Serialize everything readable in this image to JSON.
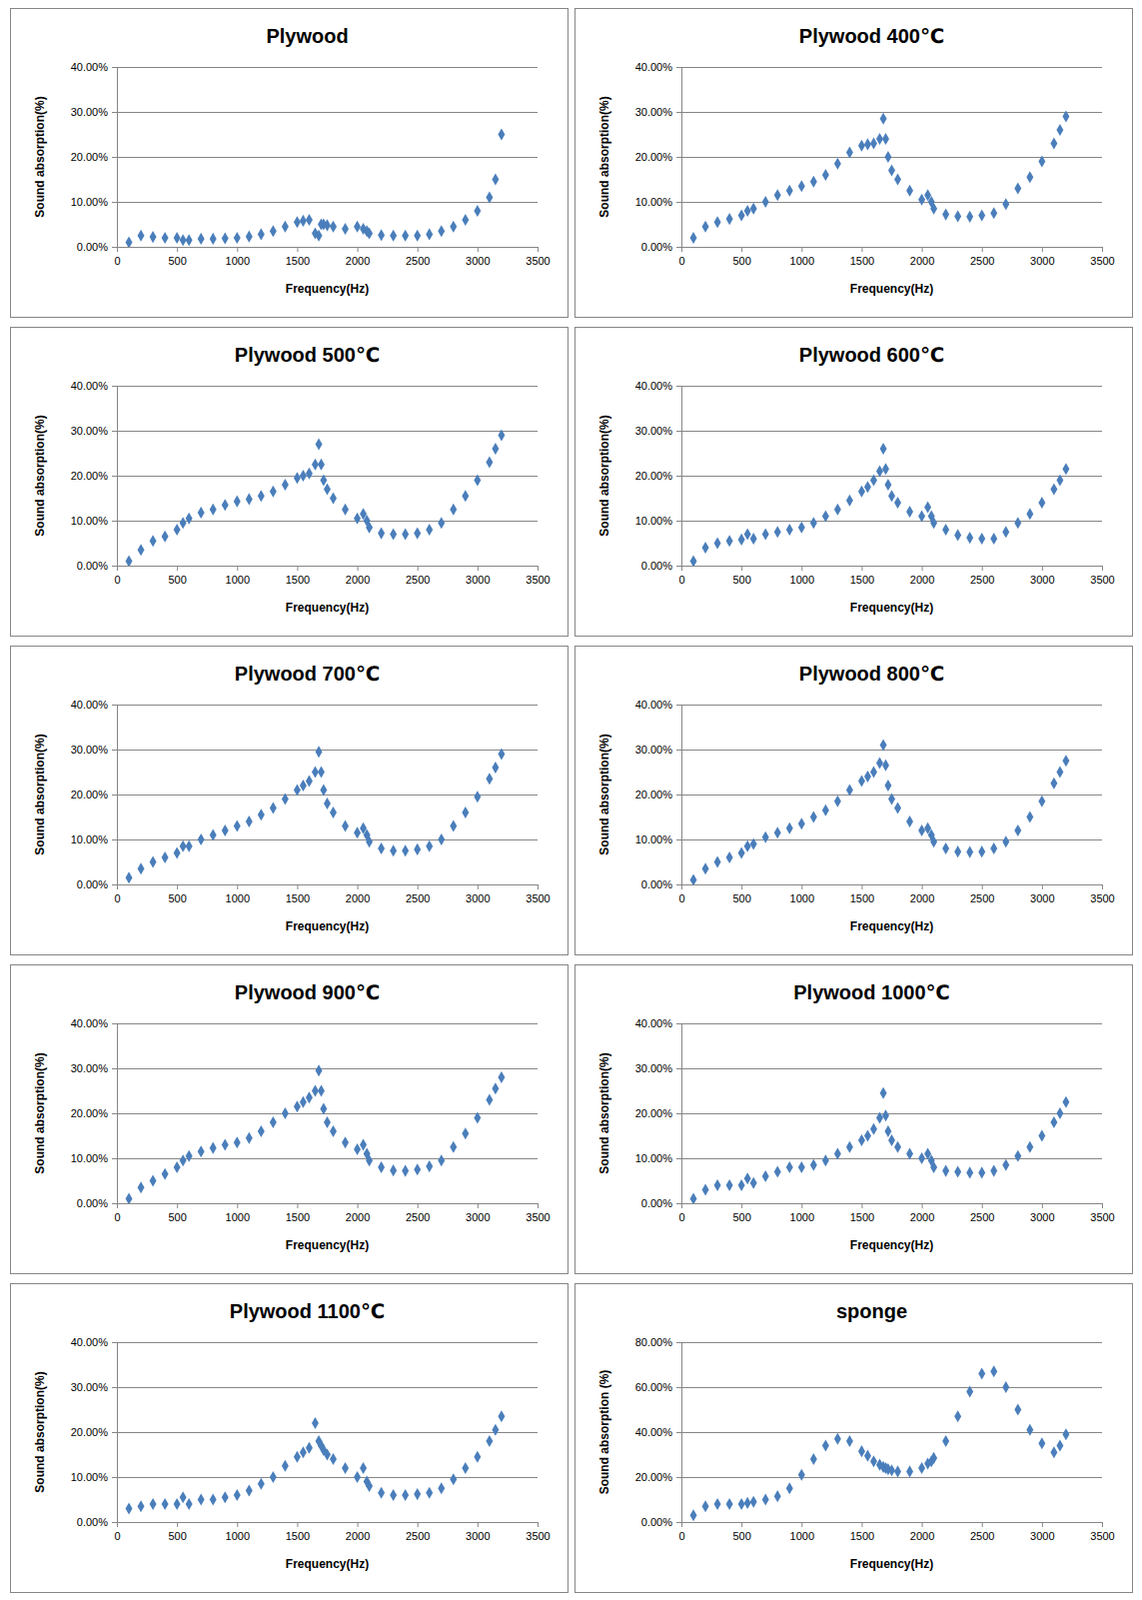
{
  "chart_data": [
    {
      "type": "scatter",
      "title": "Plywood",
      "x_label": "Frequency(Hz)",
      "y_label": "Sound absorption(%)",
      "color": "#4a7ebb",
      "marker": "diamond",
      "grid": true,
      "xlim": [
        0,
        3500
      ],
      "xticks": [
        0,
        500,
        1000,
        1500,
        2000,
        2500,
        3000,
        3500
      ],
      "ylim": [
        0,
        40
      ],
      "yticks": [
        {
          "value": 0,
          "label": "0.00%"
        },
        {
          "value": 10,
          "label": "10.00%"
        },
        {
          "value": 20,
          "label": "20.00%"
        },
        {
          "value": 30,
          "label": "30.00%"
        },
        {
          "value": 40,
          "label": "40.00%"
        }
      ],
      "x": [
        100,
        200,
        300,
        400,
        500,
        550,
        600,
        700,
        800,
        900,
        1000,
        1100,
        1200,
        1300,
        1400,
        1500,
        1550,
        1600,
        1650,
        1680,
        1700,
        1720,
        1750,
        1800,
        1900,
        2000,
        2050,
        2080,
        2100,
        2200,
        2300,
        2400,
        2500,
        2600,
        2700,
        2800,
        2900,
        3000,
        3100,
        3150,
        3200
      ],
      "values": [
        1,
        2.5,
        2.2,
        2,
        2,
        1.5,
        1.5,
        1.8,
        1.8,
        1.9,
        2,
        2.3,
        2.8,
        3.5,
        4.5,
        5.5,
        5.8,
        6,
        3,
        2.5,
        5,
        5,
        4.8,
        4.5,
        4,
        4.5,
        4,
        3.5,
        3,
        2.6,
        2.5,
        2.5,
        2.5,
        2.8,
        3.5,
        4.5,
        6,
        8,
        11,
        15,
        25
      ]
    },
    {
      "type": "scatter",
      "title": "Plywood 400℃",
      "x_label": "Frequency(Hz)",
      "y_label": "Sound absorption(%)",
      "color": "#4a7ebb",
      "marker": "diamond",
      "grid": true,
      "xlim": [
        0,
        3500
      ],
      "xticks": [
        0,
        500,
        1000,
        1500,
        2000,
        2500,
        3000,
        3500
      ],
      "ylim": [
        0,
        40
      ],
      "yticks": [
        {
          "value": 0,
          "label": "0.00%"
        },
        {
          "value": 10,
          "label": "10.00%"
        },
        {
          "value": 20,
          "label": "20.00%"
        },
        {
          "value": 30,
          "label": "30.00%"
        },
        {
          "value": 40,
          "label": "40.00%"
        }
      ],
      "x": [
        100,
        200,
        300,
        400,
        500,
        550,
        600,
        700,
        800,
        900,
        1000,
        1100,
        1200,
        1300,
        1400,
        1500,
        1550,
        1600,
        1650,
        1680,
        1700,
        1720,
        1750,
        1800,
        1900,
        2000,
        2050,
        2080,
        2100,
        2200,
        2300,
        2400,
        2500,
        2600,
        2700,
        2800,
        2900,
        3000,
        3100,
        3150,
        3200
      ],
      "values": [
        2,
        4.5,
        5.5,
        6.2,
        7,
        8,
        8.5,
        10,
        11.5,
        12.5,
        13.5,
        14.5,
        16,
        18.5,
        21,
        22.5,
        22.8,
        23,
        24,
        28.5,
        24,
        20,
        17,
        15,
        12.5,
        10.5,
        11.5,
        10,
        8.5,
        7.2,
        6.8,
        6.7,
        7,
        7.5,
        9.5,
        13,
        15.5,
        19,
        23,
        26,
        29
      ]
    },
    {
      "type": "scatter",
      "title": "Plywood 500℃",
      "x_label": "Frequency(Hz)",
      "y_label": "Sound absorption(%)",
      "color": "#4a7ebb",
      "marker": "diamond",
      "grid": true,
      "xlim": [
        0,
        3500
      ],
      "xticks": [
        0,
        500,
        1000,
        1500,
        2000,
        2500,
        3000,
        3500
      ],
      "ylim": [
        0,
        40
      ],
      "yticks": [
        {
          "value": 0,
          "label": "0.00%"
        },
        {
          "value": 10,
          "label": "10.00%"
        },
        {
          "value": 20,
          "label": "20.00%"
        },
        {
          "value": 30,
          "label": "30.00%"
        },
        {
          "value": 40,
          "label": "40.00%"
        }
      ],
      "x": [
        100,
        200,
        300,
        400,
        500,
        550,
        600,
        700,
        800,
        900,
        1000,
        1100,
        1200,
        1300,
        1400,
        1500,
        1550,
        1600,
        1650,
        1680,
        1700,
        1720,
        1750,
        1800,
        1900,
        2000,
        2050,
        2080,
        2100,
        2200,
        2300,
        2400,
        2500,
        2600,
        2700,
        2800,
        2900,
        3000,
        3100,
        3150,
        3200
      ],
      "values": [
        1,
        3.5,
        5.5,
        6.5,
        8,
        9.5,
        10.5,
        11.8,
        12.5,
        13.5,
        14.3,
        14.8,
        15.5,
        16.5,
        18,
        19.5,
        20,
        20.5,
        22.5,
        27,
        22.5,
        19,
        17,
        15,
        12.5,
        10.5,
        11.5,
        10,
        8.5,
        7.2,
        7,
        7,
        7.2,
        8,
        9.5,
        12.5,
        15.5,
        19,
        23,
        26,
        29
      ]
    },
    {
      "type": "scatter",
      "title": "Plywood 600℃",
      "x_label": "Frequency(Hz)",
      "y_label": "Sound absorption(%)",
      "color": "#4a7ebb",
      "marker": "diamond",
      "grid": true,
      "xlim": [
        0,
        3500
      ],
      "xticks": [
        0,
        500,
        1000,
        1500,
        2000,
        2500,
        3000,
        3500
      ],
      "ylim": [
        0,
        40
      ],
      "yticks": [
        {
          "value": 0,
          "label": "0.00%"
        },
        {
          "value": 10,
          "label": "10.00%"
        },
        {
          "value": 20,
          "label": "20.00%"
        },
        {
          "value": 30,
          "label": "30.00%"
        },
        {
          "value": 40,
          "label": "40.00%"
        }
      ],
      "x": [
        100,
        200,
        300,
        400,
        500,
        550,
        600,
        700,
        800,
        900,
        1000,
        1100,
        1200,
        1300,
        1400,
        1500,
        1550,
        1600,
        1650,
        1680,
        1700,
        1720,
        1750,
        1800,
        1900,
        2000,
        2050,
        2080,
        2100,
        2200,
        2300,
        2400,
        2500,
        2600,
        2700,
        2800,
        2900,
        3000,
        3100,
        3150,
        3200
      ],
      "values": [
        1,
        4,
        5,
        5.5,
        5.8,
        7,
        6,
        7,
        7.5,
        8,
        8.5,
        9.5,
        11,
        12.5,
        14.5,
        16.5,
        17.5,
        19,
        21,
        26,
        21.5,
        18,
        15.5,
        14,
        12,
        11,
        13,
        11,
        9.5,
        8,
        6.8,
        6.2,
        6,
        6,
        7.5,
        9.5,
        11.5,
        14,
        17,
        19,
        21.5
      ]
    },
    {
      "type": "scatter",
      "title": "Plywood 700℃",
      "x_label": "Frequency(Hz)",
      "y_label": "Sound absorption(%)",
      "color": "#4a7ebb",
      "marker": "diamond",
      "grid": true,
      "xlim": [
        0,
        3500
      ],
      "xticks": [
        0,
        500,
        1000,
        1500,
        2000,
        2500,
        3000,
        3500
      ],
      "ylim": [
        0,
        40
      ],
      "yticks": [
        {
          "value": 0,
          "label": "0.00%"
        },
        {
          "value": 10,
          "label": "10.00%"
        },
        {
          "value": 20,
          "label": "20.00%"
        },
        {
          "value": 30,
          "label": "30.00%"
        },
        {
          "value": 40,
          "label": "40.00%"
        }
      ],
      "x": [
        100,
        200,
        300,
        400,
        500,
        550,
        600,
        700,
        800,
        900,
        1000,
        1100,
        1200,
        1300,
        1400,
        1500,
        1550,
        1600,
        1650,
        1680,
        1700,
        1720,
        1750,
        1800,
        1900,
        2000,
        2050,
        2080,
        2100,
        2200,
        2300,
        2400,
        2500,
        2600,
        2700,
        2800,
        2900,
        3000,
        3100,
        3150,
        3200
      ],
      "values": [
        1.5,
        3.5,
        5,
        6,
        7,
        8.5,
        8.5,
        10,
        11,
        12,
        13,
        14,
        15.5,
        17,
        19,
        21,
        22,
        23,
        25,
        29.5,
        25,
        21,
        18,
        16,
        13,
        11.5,
        12.5,
        11,
        9.5,
        8,
        7.5,
        7.5,
        7.8,
        8.5,
        10,
        13,
        16,
        19.5,
        23.5,
        26,
        29
      ]
    },
    {
      "type": "scatter",
      "title": "Plywood 800℃",
      "x_label": "Frequency(Hz)",
      "y_label": "Sound absorption(%)",
      "color": "#4a7ebb",
      "marker": "diamond",
      "grid": true,
      "xlim": [
        0,
        3500
      ],
      "xticks": [
        0,
        500,
        1000,
        1500,
        2000,
        2500,
        3000,
        3500
      ],
      "ylim": [
        0,
        40
      ],
      "yticks": [
        {
          "value": 0,
          "label": "0.00%"
        },
        {
          "value": 10,
          "label": "10.00%"
        },
        {
          "value": 20,
          "label": "20.00%"
        },
        {
          "value": 30,
          "label": "30.00%"
        },
        {
          "value": 40,
          "label": "40.00%"
        }
      ],
      "x": [
        100,
        200,
        300,
        400,
        500,
        550,
        600,
        700,
        800,
        900,
        1000,
        1100,
        1200,
        1300,
        1400,
        1500,
        1550,
        1600,
        1650,
        1680,
        1700,
        1720,
        1750,
        1800,
        1900,
        2000,
        2050,
        2080,
        2100,
        2200,
        2300,
        2400,
        2500,
        2600,
        2700,
        2800,
        2900,
        3000,
        3100,
        3150,
        3200
      ],
      "values": [
        1,
        3.5,
        5,
        6,
        7,
        8.5,
        9,
        10.5,
        11.5,
        12.5,
        13.5,
        15,
        16.5,
        18.5,
        21,
        23,
        24,
        25,
        27,
        31,
        26.5,
        22,
        19,
        17,
        14,
        12,
        12.5,
        11,
        9.5,
        8,
        7.3,
        7.2,
        7.3,
        8,
        9.5,
        12,
        15,
        18.5,
        22.5,
        25,
        27.5
      ]
    },
    {
      "type": "scatter",
      "title": "Plywood 900℃",
      "x_label": "Frequency(Hz)",
      "y_label": "Sound absorption(%)",
      "color": "#4a7ebb",
      "marker": "diamond",
      "grid": true,
      "xlim": [
        0,
        3500
      ],
      "xticks": [
        0,
        500,
        1000,
        1500,
        2000,
        2500,
        3000,
        3500
      ],
      "ylim": [
        0,
        40
      ],
      "yticks": [
        {
          "value": 0,
          "label": "0.00%"
        },
        {
          "value": 10,
          "label": "10.00%"
        },
        {
          "value": 20,
          "label": "20.00%"
        },
        {
          "value": 30,
          "label": "30.00%"
        },
        {
          "value": 40,
          "label": "40.00%"
        }
      ],
      "x": [
        100,
        200,
        300,
        400,
        500,
        550,
        600,
        700,
        800,
        900,
        1000,
        1100,
        1200,
        1300,
        1400,
        1500,
        1550,
        1600,
        1650,
        1680,
        1700,
        1720,
        1750,
        1800,
        1900,
        2000,
        2050,
        2080,
        2100,
        2200,
        2300,
        2400,
        2500,
        2600,
        2700,
        2800,
        2900,
        3000,
        3100,
        3150,
        3200
      ],
      "values": [
        1,
        3.5,
        5,
        6.5,
        8,
        9.5,
        10.5,
        11.5,
        12.3,
        13,
        13.5,
        14.5,
        16,
        18,
        20,
        21.5,
        22.5,
        23.5,
        25,
        29.5,
        25,
        21,
        18,
        16,
        13.5,
        12,
        13,
        11,
        9.5,
        8,
        7.3,
        7.2,
        7.5,
        8.2,
        9.5,
        12.5,
        15.5,
        19,
        23,
        25.5,
        28
      ]
    },
    {
      "type": "scatter",
      "title": "Plywood 1000℃",
      "x_label": "Frequency(Hz)",
      "y_label": "Sound absorption(%)",
      "color": "#4a7ebb",
      "marker": "diamond",
      "grid": true,
      "xlim": [
        0,
        3500
      ],
      "xticks": [
        0,
        500,
        1000,
        1500,
        2000,
        2500,
        3000,
        3500
      ],
      "ylim": [
        0,
        40
      ],
      "yticks": [
        {
          "value": 0,
          "label": "0.00%"
        },
        {
          "value": 10,
          "label": "10.00%"
        },
        {
          "value": 20,
          "label": "20.00%"
        },
        {
          "value": 30,
          "label": "30.00%"
        },
        {
          "value": 40,
          "label": "40.00%"
        }
      ],
      "x": [
        100,
        200,
        300,
        400,
        500,
        550,
        600,
        700,
        800,
        900,
        1000,
        1100,
        1200,
        1300,
        1400,
        1500,
        1550,
        1600,
        1650,
        1680,
        1700,
        1720,
        1750,
        1800,
        1900,
        2000,
        2050,
        2080,
        2100,
        2200,
        2300,
        2400,
        2500,
        2600,
        2700,
        2800,
        2900,
        3000,
        3100,
        3150,
        3200
      ],
      "values": [
        1,
        3,
        4,
        4,
        4,
        5.5,
        4.5,
        6,
        7,
        8,
        8,
        8.5,
        9.5,
        11,
        12.5,
        14,
        15,
        16.5,
        19,
        24.5,
        19.5,
        16,
        14,
        12.5,
        11,
        10,
        11,
        9.5,
        8,
        7.2,
        7,
        6.8,
        6.8,
        7.2,
        8.5,
        10.5,
        12.5,
        15,
        18,
        20,
        22.5
      ]
    },
    {
      "type": "scatter",
      "title": "Plywood 1100℃",
      "x_label": "Frequency(Hz)",
      "y_label": "Sound absorption(%)",
      "color": "#4a7ebb",
      "marker": "diamond",
      "grid": true,
      "xlim": [
        0,
        3500
      ],
      "xticks": [
        0,
        500,
        1000,
        1500,
        2000,
        2500,
        3000,
        3500
      ],
      "ylim": [
        0,
        40
      ],
      "yticks": [
        {
          "value": 0,
          "label": "0.00%"
        },
        {
          "value": 10,
          "label": "10.00%"
        },
        {
          "value": 20,
          "label": "20.00%"
        },
        {
          "value": 30,
          "label": "30.00%"
        },
        {
          "value": 40,
          "label": "40.00%"
        }
      ],
      "x": [
        100,
        200,
        300,
        400,
        500,
        550,
        600,
        700,
        800,
        900,
        1000,
        1100,
        1200,
        1300,
        1400,
        1500,
        1550,
        1600,
        1650,
        1680,
        1700,
        1720,
        1750,
        1800,
        1900,
        2000,
        2050,
        2080,
        2100,
        2200,
        2300,
        2400,
        2500,
        2600,
        2700,
        2800,
        2900,
        3000,
        3100,
        3150,
        3200
      ],
      "values": [
        3,
        3.5,
        4,
        4,
        4,
        5.5,
        4,
        5,
        5,
        5.5,
        6,
        7,
        8.5,
        10,
        12.5,
        14.5,
        15.5,
        16.5,
        22,
        18,
        17,
        16,
        15,
        14,
        12,
        10,
        12,
        9,
        8,
        6.5,
        6,
        6,
        6.2,
        6.5,
        7.5,
        9.5,
        12,
        14.5,
        18,
        20.5,
        23.5
      ]
    },
    {
      "type": "scatter",
      "title": "sponge",
      "x_label": "Frequency(Hz)",
      "y_label": "Sound absorption (%)",
      "color": "#4a7ebb",
      "marker": "diamond",
      "grid": true,
      "xlim": [
        0,
        3500
      ],
      "xticks": [
        0,
        500,
        1000,
        1500,
        2000,
        2500,
        3000,
        3500
      ],
      "ylim": [
        0,
        80
      ],
      "yticks": [
        {
          "value": 0,
          "label": "0.00%"
        },
        {
          "value": 20,
          "label": "20.00%"
        },
        {
          "value": 40,
          "label": "40.00%"
        },
        {
          "value": 60,
          "label": "60.00%"
        },
        {
          "value": 80,
          "label": "80.00%"
        }
      ],
      "x": [
        100,
        200,
        300,
        400,
        500,
        550,
        600,
        700,
        800,
        900,
        1000,
        1100,
        1200,
        1300,
        1400,
        1500,
        1550,
        1600,
        1650,
        1680,
        1700,
        1720,
        1750,
        1800,
        1900,
        2000,
        2050,
        2080,
        2100,
        2200,
        2300,
        2400,
        2500,
        2600,
        2700,
        2800,
        2900,
        3000,
        3100,
        3150,
        3200
      ],
      "values": [
        3,
        7,
        8,
        8,
        8,
        8.5,
        9,
        10,
        11.5,
        15,
        21,
        28,
        34,
        37,
        36,
        31.5,
        29.5,
        27,
        25.5,
        24.5,
        24,
        23.5,
        23,
        22.5,
        22.5,
        24,
        26,
        27,
        28.5,
        36,
        47,
        58,
        66,
        67,
        60,
        50,
        41,
        35,
        31,
        34,
        39
      ]
    }
  ]
}
